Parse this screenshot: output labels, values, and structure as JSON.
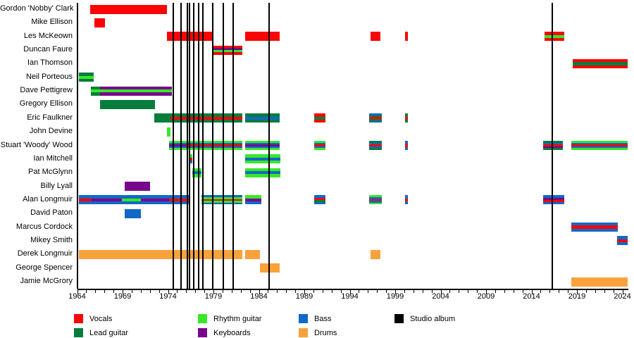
{
  "colors": {
    "vocals": "#f90505",
    "lead_guitar": "#067d3c",
    "rhythm_guitar": "#37e827",
    "keyboards": "#76098a",
    "bass": "#1268c6",
    "drums": "#f9a23c",
    "studio_album": "#000000"
  },
  "legend": {
    "rows": [
      [
        {
          "label": "Vocals",
          "color": "vocals"
        },
        {
          "label": "Rhythm guitar",
          "color": "rhythm_guitar"
        },
        {
          "label": "Bass",
          "color": "bass"
        },
        {
          "label": "Studio album",
          "color": "studio_album"
        }
      ],
      [
        {
          "label": "Lead guitar",
          "color": "lead_guitar"
        },
        {
          "label": "Keyboards",
          "color": "keyboards"
        },
        {
          "label": "Drums",
          "color": "drums"
        }
      ]
    ]
  },
  "chart_data": {
    "type": "bar",
    "subtype": "band-member-timeline",
    "title": "",
    "xlabel": "",
    "ylabel": "",
    "grid": false,
    "axis": {
      "year_start": 1964,
      "year_end": 2024.6,
      "major_ticks": [
        1964,
        1969,
        1974,
        1979,
        1984,
        1989,
        1994,
        1999,
        2004,
        2009,
        2014,
        2019,
        2024
      ],
      "minor_tick_every": 1
    },
    "album_years": [
      1974.6,
      1975.4,
      1976.1,
      1976.4,
      1976.8,
      1977.35,
      1977.8,
      1978.9,
      1980.05,
      1981.2,
      1985.1,
      2016.25
    ],
    "rows": [
      {
        "name": "Gordon 'Nobby' Clark",
        "bars": [
          {
            "from": 1965.4,
            "to": 1973.9,
            "stripes": [
              "vocals"
            ]
          }
        ]
      },
      {
        "name": "Mike Ellison",
        "bars": [
          {
            "from": 1965.9,
            "to": 1967.1,
            "stripes": [
              "vocals"
            ]
          }
        ]
      },
      {
        "name": "Les McKeown",
        "bars": [
          {
            "from": 1973.85,
            "to": 1979.0,
            "stripes": [
              "vocals"
            ]
          },
          {
            "from": 1982.45,
            "to": 1986.3,
            "stripes": [
              "vocals"
            ]
          },
          {
            "from": 1996.25,
            "to": 1997.4,
            "stripes": [
              "vocals"
            ]
          },
          {
            "from": 2000.1,
            "to": 2000.4,
            "stripes": [
              "vocals"
            ]
          },
          {
            "from": 2015.4,
            "to": 2017.6,
            "stripes": [
              "vocals",
              "rhythm_guitar",
              "vocals"
            ]
          }
        ]
      },
      {
        "name": "Duncan Faure",
        "bars": [
          {
            "from": 1979.0,
            "to": 1982.15,
            "stripes": [
              "vocals",
              "keyboards",
              "rhythm_guitar",
              "vocals"
            ]
          }
        ]
      },
      {
        "name": "Ian Thomson",
        "bars": [
          {
            "from": 2018.5,
            "to": 2024.55,
            "stripes": [
              "vocals",
              "lead_guitar",
              "vocals"
            ]
          }
        ]
      },
      {
        "name": "Neil Porteous",
        "bars": [
          {
            "from": 1964.2,
            "to": 1965.8,
            "stripes": [
              "lead_guitar",
              "rhythm_guitar",
              "lead_guitar"
            ]
          }
        ]
      },
      {
        "name": "Dave Pettigrew",
        "bars": [
          {
            "from": 1965.55,
            "to": 1966.5,
            "stripes": [
              "lead_guitar",
              "rhythm_guitar",
              "lead_guitar"
            ]
          },
          {
            "from": 1966.5,
            "to": 1974.4,
            "stripes": [
              "keyboards",
              "rhythm_guitar",
              "keyboards"
            ]
          }
        ]
      },
      {
        "name": "Gregory Ellison",
        "bars": [
          {
            "from": 1966.55,
            "to": 1972.6,
            "stripes": [
              "lead_guitar"
            ]
          }
        ]
      },
      {
        "name": "Eric Faulkner",
        "bars": [
          {
            "from": 1972.45,
            "to": 1974.25,
            "stripes": [
              "lead_guitar"
            ]
          },
          {
            "from": 1974.25,
            "to": 1982.15,
            "stripes": [
              "lead_guitar",
              "vocals",
              "lead_guitar"
            ]
          },
          {
            "from": 1982.5,
            "to": 1986.3,
            "stripes": [
              "lead_guitar",
              "bass",
              "lead_guitar"
            ]
          },
          {
            "from": 1990.1,
            "to": 1991.3,
            "stripes": [
              "vocals",
              "lead_guitar",
              "vocals"
            ]
          },
          {
            "from": 1996.15,
            "to": 1997.55,
            "stripes": [
              "bass",
              "lead_guitar",
              "vocals",
              "lead_guitar",
              "bass"
            ]
          },
          {
            "from": 2000.1,
            "to": 2000.4,
            "stripes": [
              "lead_guitar",
              "vocals",
              "lead_guitar"
            ]
          }
        ]
      },
      {
        "name": "John Devine",
        "bars": [
          {
            "from": 1973.85,
            "to": 1974.25,
            "stripes": [
              "rhythm_guitar"
            ]
          }
        ]
      },
      {
        "name": "Stuart 'Woody' Wood",
        "bars": [
          {
            "from": 1974.1,
            "to": 1976.0,
            "stripes": [
              "rhythm_guitar",
              "bass",
              "keyboards",
              "bass",
              "rhythm_guitar"
            ]
          },
          {
            "from": 1976.0,
            "to": 1982.15,
            "stripes": [
              "rhythm_guitar",
              "bass",
              "vocals",
              "bass",
              "rhythm_guitar"
            ]
          },
          {
            "from": 1982.5,
            "to": 1986.3,
            "stripes": [
              "rhythm_guitar",
              "bass",
              "keyboards",
              "bass",
              "rhythm_guitar"
            ]
          },
          {
            "from": 1990.1,
            "to": 1991.3,
            "stripes": [
              "rhythm_guitar",
              "bass",
              "vocals",
              "bass",
              "rhythm_guitar"
            ]
          },
          {
            "from": 1996.15,
            "to": 1997.55,
            "stripes": [
              "lead_guitar",
              "bass",
              "vocals",
              "bass",
              "lead_guitar"
            ]
          },
          {
            "from": 2000.1,
            "to": 2000.4,
            "stripes": [
              "bass",
              "vocals",
              "bass"
            ]
          },
          {
            "from": 2015.3,
            "to": 2017.45,
            "stripes": [
              "lead_guitar",
              "bass",
              "vocals",
              "keyboards",
              "lead_guitar"
            ]
          },
          {
            "from": 2018.35,
            "to": 2024.55,
            "stripes": [
              "rhythm_guitar",
              "bass",
              "vocals",
              "bass",
              "rhythm_guitar"
            ]
          }
        ]
      },
      {
        "name": "Ian Mitchell",
        "bars": [
          {
            "from": 1976.25,
            "to": 1976.7,
            "stripes": [
              "rhythm_guitar",
              "vocals",
              "bass"
            ]
          },
          {
            "from": 1982.5,
            "to": 1986.35,
            "stripes": [
              "rhythm_guitar",
              "bass",
              "rhythm_guitar"
            ]
          }
        ]
      },
      {
        "name": "Pat McGlynn",
        "bars": [
          {
            "from": 1976.7,
            "to": 1977.65,
            "stripes": [
              "rhythm_guitar",
              "bass",
              "rhythm_guitar"
            ]
          },
          {
            "from": 1982.5,
            "to": 1986.35,
            "stripes": [
              "rhythm_guitar",
              "bass",
              "rhythm_guitar"
            ]
          }
        ]
      },
      {
        "name": "Billy Lyall",
        "bars": [
          {
            "from": 1969.2,
            "to": 1972.05,
            "stripes": [
              "keyboards"
            ]
          }
        ]
      },
      {
        "name": "Alan Longmuir",
        "bars": [
          {
            "from": 1964.2,
            "to": 1965.6,
            "stripes": [
              "bass",
              "vocals",
              "bass"
            ]
          },
          {
            "from": 1965.6,
            "to": 1968.9,
            "stripes": [
              "bass",
              "keyboards",
              "bass"
            ]
          },
          {
            "from": 1968.9,
            "to": 1971.05,
            "stripes": [
              "bass",
              "rhythm_guitar",
              "bass"
            ]
          },
          {
            "from": 1971.05,
            "to": 1974.15,
            "stripes": [
              "bass",
              "keyboards",
              "bass"
            ]
          },
          {
            "from": 1974.15,
            "to": 1976.3,
            "stripes": [
              "bass",
              "vocals",
              "bass"
            ]
          },
          {
            "from": 1977.65,
            "to": 1982.15,
            "stripes": [
              "bass",
              "rhythm_guitar",
              "vocals",
              "rhythm_guitar",
              "bass"
            ]
          },
          {
            "from": 1982.5,
            "to": 1984.25,
            "stripes": [
              "rhythm_guitar",
              "keyboards",
              "bass"
            ]
          },
          {
            "from": 1990.1,
            "to": 1991.3,
            "stripes": [
              "bass",
              "vocals",
              "lead_guitar",
              "bass"
            ]
          },
          {
            "from": 1996.15,
            "to": 1997.55,
            "stripes": [
              "rhythm_guitar",
              "bass",
              "vocals",
              "bass",
              "rhythm_guitar"
            ]
          },
          {
            "from": 2000.1,
            "to": 2000.4,
            "stripes": [
              "bass",
              "vocals",
              "bass"
            ]
          },
          {
            "from": 2015.25,
            "to": 2017.6,
            "stripes": [
              "bass",
              "keyboards",
              "vocals",
              "bass"
            ]
          }
        ]
      },
      {
        "name": "David Paton",
        "bars": [
          {
            "from": 1969.2,
            "to": 1971.05,
            "stripes": [
              "bass"
            ]
          }
        ]
      },
      {
        "name": "Marcus Cordock",
        "bars": [
          {
            "from": 2018.4,
            "to": 2023.5,
            "stripes": [
              "bass",
              "vocals",
              "bass"
            ]
          }
        ]
      },
      {
        "name": "Mikey Smith",
        "bars": [
          {
            "from": 2023.4,
            "to": 2024.55,
            "stripes": [
              "bass",
              "vocals",
              "bass"
            ]
          }
        ]
      },
      {
        "name": "Derek Longmuir",
        "bars": [
          {
            "from": 1964.2,
            "to": 1982.15,
            "stripes": [
              "drums"
            ]
          },
          {
            "from": 1982.5,
            "to": 1984.15,
            "stripes": [
              "drums"
            ]
          },
          {
            "from": 1996.25,
            "to": 1997.35,
            "stripes": [
              "drums"
            ]
          }
        ]
      },
      {
        "name": "George Spencer",
        "bars": [
          {
            "from": 1984.1,
            "to": 1986.3,
            "stripes": [
              "drums"
            ]
          }
        ]
      },
      {
        "name": "Jamie McGrory",
        "bars": [
          {
            "from": 2018.4,
            "to": 2024.55,
            "stripes": [
              "drums"
            ]
          }
        ]
      }
    ]
  }
}
